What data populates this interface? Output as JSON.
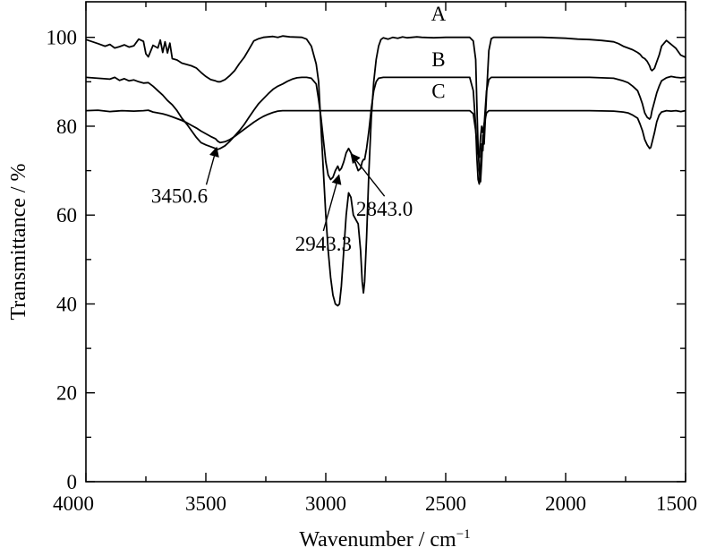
{
  "chart_data": {
    "type": "line",
    "title": "",
    "xlabel": "Wavenumber / cm",
    "xlabel_sup": "−1",
    "ylabel": "Transmittance / %",
    "xlim": [
      4000,
      1500
    ],
    "ylim": [
      0,
      108
    ],
    "xticks": [
      4000,
      3500,
      3000,
      2500,
      2000,
      1500
    ],
    "xtick_labels": [
      "4000",
      "3500",
      "3000",
      "2500",
      "2000",
      "1500"
    ],
    "yticks": [
      0,
      20,
      40,
      60,
      80,
      100
    ],
    "ytick_labels": [
      "0",
      "20",
      "40",
      "60",
      "80",
      "100"
    ],
    "x_minor_step": 250,
    "y_minor_step": 10,
    "grid": false,
    "series": [
      {
        "name": "A",
        "label_at": [
          2530,
          103.8
        ],
        "x": [
          4000,
          3950,
          3920,
          3900,
          3880,
          3860,
          3840,
          3820,
          3800,
          3780,
          3760,
          3750,
          3740,
          3720,
          3700,
          3690,
          3680,
          3670,
          3660,
          3650,
          3640,
          3620,
          3600,
          3580,
          3560,
          3540,
          3520,
          3500,
          3480,
          3460,
          3450,
          3440,
          3420,
          3400,
          3380,
          3360,
          3340,
          3320,
          3300,
          3280,
          3260,
          3240,
          3220,
          3200,
          3180,
          3150,
          3100,
          3080,
          3060,
          3050,
          3040,
          3030,
          3020,
          3010,
          3000,
          2990,
          2980,
          2970,
          2960,
          2950,
          2943,
          2935,
          2925,
          2915,
          2905,
          2895,
          2885,
          2875,
          2865,
          2855,
          2848,
          2843,
          2838,
          2830,
          2820,
          2810,
          2800,
          2790,
          2780,
          2770,
          2760,
          2740,
          2720,
          2700,
          2680,
          2660,
          2640,
          2620,
          2600,
          2550,
          2500,
          2450,
          2400,
          2385,
          2375,
          2370,
          2365,
          2360,
          2355,
          2350,
          2345,
          2340,
          2330,
          2320,
          2310,
          2300,
          2280,
          2250,
          2200,
          2100,
          2000,
          1950,
          1900,
          1850,
          1800,
          1780,
          1760,
          1740,
          1720,
          1700,
          1690,
          1680,
          1670,
          1660,
          1650,
          1645,
          1640,
          1630,
          1620,
          1610,
          1600,
          1580,
          1560,
          1540,
          1520,
          1500
        ],
        "y": [
          99.5,
          98.6,
          98.0,
          98.4,
          97.6,
          97.9,
          98.3,
          97.8,
          98.1,
          99.6,
          99.1,
          96.3,
          95.6,
          98.2,
          97.6,
          99.4,
          96.6,
          99.0,
          96.5,
          98.7,
          95.2,
          94.9,
          94.2,
          93.9,
          93.6,
          93.1,
          92.1,
          91.2,
          90.5,
          90.2,
          90.0,
          90.0,
          90.5,
          91.4,
          92.5,
          94.1,
          95.5,
          97.3,
          99.2,
          99.7,
          100.0,
          100.1,
          100.2,
          100.0,
          100.3,
          100.1,
          100.0,
          99.6,
          98.0,
          96.0,
          94.0,
          90.0,
          80.0,
          70.0,
          60.0,
          52.0,
          46.0,
          42.0,
          40.0,
          39.6,
          40.0,
          44.0,
          52.0,
          60.0,
          65.0,
          64.0,
          60.0,
          59.0,
          58.0,
          52.0,
          45.0,
          42.5,
          45.0,
          55.0,
          70.0,
          82.0,
          90.0,
          95.0,
          98.0,
          99.5,
          99.9,
          99.6,
          100.0,
          99.8,
          100.1,
          99.9,
          100.0,
          100.1,
          100.0,
          99.9,
          100.0,
          100.0,
          100.0,
          99.2,
          95.0,
          85.0,
          75.0,
          70.0,
          67.5,
          72.0,
          78.0,
          76.0,
          87.0,
          97.0,
          99.7,
          100.0,
          100.0,
          100.0,
          100.0,
          100.0,
          99.8,
          99.6,
          99.5,
          99.3,
          99.0,
          98.6,
          98.0,
          97.6,
          97.2,
          96.6,
          96.2,
          95.5,
          95.2,
          94.6,
          93.6,
          92.8,
          92.5,
          93.0,
          94.5,
          96.0,
          98.0,
          99.3,
          98.4,
          97.5,
          96.0,
          95.5
        ]
      },
      {
        "name": "B",
        "label_at": [
          2530,
          93.5
        ],
        "x": [
          4000,
          3950,
          3900,
          3880,
          3860,
          3840,
          3820,
          3800,
          3780,
          3760,
          3740,
          3720,
          3700,
          3680,
          3660,
          3640,
          3620,
          3600,
          3580,
          3560,
          3540,
          3520,
          3500,
          3480,
          3460,
          3450,
          3440,
          3420,
          3400,
          3380,
          3360,
          3340,
          3320,
          3300,
          3280,
          3260,
          3240,
          3220,
          3200,
          3180,
          3160,
          3140,
          3120,
          3100,
          3080,
          3060,
          3040,
          3030,
          3020,
          3010,
          3000,
          2990,
          2980,
          2970,
          2960,
          2950,
          2943,
          2935,
          2925,
          2915,
          2905,
          2895,
          2885,
          2875,
          2865,
          2855,
          2848,
          2843,
          2838,
          2830,
          2820,
          2810,
          2800,
          2790,
          2780,
          2760,
          2700,
          2600,
          2500,
          2400,
          2385,
          2375,
          2370,
          2365,
          2360,
          2355,
          2350,
          2345,
          2340,
          2330,
          2320,
          2310,
          2300,
          2250,
          2200,
          2100,
          2000,
          1900,
          1800,
          1760,
          1740,
          1720,
          1700,
          1690,
          1680,
          1670,
          1660,
          1650,
          1645,
          1640,
          1630,
          1620,
          1610,
          1600,
          1580,
          1560,
          1540,
          1520,
          1500
        ],
        "y": [
          91.0,
          90.8,
          90.6,
          91.0,
          90.3,
          90.7,
          90.2,
          90.4,
          90.0,
          89.7,
          89.8,
          89.0,
          88.0,
          87.0,
          85.8,
          84.8,
          83.5,
          81.8,
          80.5,
          79.0,
          77.5,
          76.3,
          75.8,
          75.4,
          75.0,
          74.8,
          75.0,
          75.6,
          76.6,
          77.8,
          79.0,
          80.4,
          82.0,
          83.6,
          85.1,
          86.2,
          87.3,
          88.3,
          89.0,
          89.5,
          90.1,
          90.6,
          90.9,
          91.0,
          91.0,
          90.8,
          89.5,
          86.0,
          82.0,
          77.0,
          72.0,
          69.0,
          68.0,
          68.5,
          70.0,
          71.0,
          70.0,
          70.5,
          72.0,
          74.0,
          75.0,
          74.0,
          73.0,
          71.5,
          70.0,
          70.5,
          72.0,
          72.5,
          72.5,
          75.0,
          79.0,
          84.0,
          88.0,
          90.0,
          90.8,
          91.0,
          91.0,
          91.0,
          91.0,
          91.0,
          88.0,
          80.0,
          73.0,
          68.0,
          67.0,
          71.0,
          76.0,
          74.5,
          80.0,
          88.0,
          90.5,
          91.0,
          91.0,
          91.0,
          91.0,
          91.0,
          91.0,
          91.0,
          90.8,
          90.2,
          89.8,
          89.0,
          88.0,
          86.6,
          85.0,
          83.0,
          82.0,
          81.6,
          82.0,
          83.5,
          85.5,
          87.5,
          89.0,
          90.2,
          90.9,
          91.2,
          91.0,
          90.9,
          91.0
        ]
      },
      {
        "name": "C",
        "label_at": [
          2530,
          86.3
        ],
        "x": [
          4000,
          3950,
          3900,
          3850,
          3800,
          3760,
          3740,
          3720,
          3700,
          3680,
          3660,
          3640,
          3620,
          3600,
          3580,
          3560,
          3540,
          3520,
          3500,
          3480,
          3460,
          3450,
          3440,
          3420,
          3400,
          3380,
          3360,
          3340,
          3320,
          3300,
          3280,
          3260,
          3240,
          3220,
          3200,
          3180,
          3160,
          3140,
          3120,
          3100,
          3050,
          3000,
          2980,
          2960,
          2950,
          2943,
          2935,
          2920,
          2900,
          2880,
          2860,
          2848,
          2843,
          2838,
          2830,
          2820,
          2810,
          2800,
          2790,
          2780,
          2760,
          2700,
          2600,
          2500,
          2400,
          2385,
          2375,
          2370,
          2365,
          2360,
          2355,
          2350,
          2345,
          2340,
          2330,
          2320,
          2310,
          2300,
          2250,
          2200,
          2100,
          2000,
          1900,
          1800,
          1760,
          1740,
          1720,
          1700,
          1690,
          1680,
          1670,
          1660,
          1650,
          1645,
          1640,
          1630,
          1620,
          1610,
          1600,
          1580,
          1560,
          1540,
          1520,
          1500
        ],
        "y": [
          83.5,
          83.6,
          83.3,
          83.5,
          83.4,
          83.5,
          83.6,
          83.2,
          83.0,
          82.8,
          82.5,
          82.1,
          81.7,
          81.3,
          80.8,
          80.2,
          79.6,
          78.9,
          78.3,
          77.7,
          77.2,
          76.6,
          76.3,
          76.5,
          77.0,
          77.7,
          78.5,
          79.3,
          80.1,
          80.9,
          81.6,
          82.2,
          82.7,
          83.1,
          83.4,
          83.5,
          83.5,
          83.5,
          83.5,
          83.5,
          83.5,
          83.5,
          83.5,
          83.5,
          83.5,
          83.5,
          83.5,
          83.5,
          83.5,
          83.5,
          83.5,
          83.5,
          83.5,
          83.5,
          83.5,
          83.5,
          83.5,
          83.5,
          83.5,
          83.5,
          83.5,
          83.5,
          83.5,
          83.5,
          83.5,
          82.8,
          79.0,
          76.0,
          74.0,
          73.0,
          77.5,
          80.0,
          78.5,
          80.5,
          83.0,
          83.5,
          83.5,
          83.5,
          83.5,
          83.5,
          83.5,
          83.5,
          83.5,
          83.4,
          83.2,
          83.0,
          82.5,
          81.8,
          80.5,
          79.0,
          77.0,
          75.8,
          75.0,
          75.2,
          76.3,
          78.5,
          81.0,
          82.5,
          83.2,
          83.5,
          83.4,
          83.5,
          83.3,
          83.5
        ]
      }
    ],
    "annotations": [
      {
        "text": "3450.6",
        "point": [
          3455,
          75.2
        ],
        "label_at": [
          3610,
          62.8
        ]
      },
      {
        "text": "2943.3",
        "point": [
          2945,
          69.0
        ],
        "label_at": [
          3010,
          52.0
        ]
      },
      {
        "text": "2843.0",
        "point": [
          2895,
          73.8
        ],
        "label_at": [
          2755,
          59.8
        ]
      }
    ]
  }
}
